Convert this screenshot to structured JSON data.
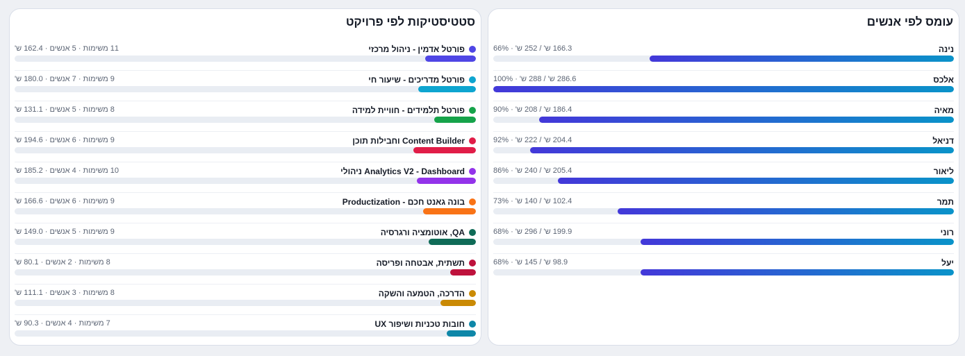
{
  "projects_panel": {
    "title": "סטטיסטיקות לפי פרויקט",
    "rows": [
      {
        "name": "פורטל אדמין - ניהול מרכזי",
        "stats": "11 משימות · 5 אנשים · 162.4 ש'",
        "color": "#4f46e5",
        "fill": 0.11
      },
      {
        "name": "פורטל מדריכים - שיעור חי",
        "stats": "9 משימות · 7 אנשים · 180.0 ש'",
        "color": "#0ea5d0",
        "fill": 0.125
      },
      {
        "name": "פורטל תלמידים - חוויית למידה",
        "stats": "8 משימות · 5 אנשים · 131.1 ש'",
        "color": "#16a34a",
        "fill": 0.09
      },
      {
        "name": "Content Builder וחבילות תוכן",
        "stats": "9 משימות · 6 אנשים · 194.6 ש'",
        "color": "#e11d48",
        "fill": 0.135
      },
      {
        "name": "Analytics V2 - Dashboard ניהולי",
        "stats": "10 משימות · 4 אנשים · 185.2 ש'",
        "color": "#9333ea",
        "fill": 0.128
      },
      {
        "name": "בונה גאנט חכם - Productization",
        "stats": "9 משימות · 6 אנשים · 166.6 ש'",
        "color": "#f97316",
        "fill": 0.115
      },
      {
        "name": "QA, אוטומציה ורגרסיה",
        "stats": "9 משימות · 5 אנשים · 149.0 ש'",
        "color": "#0f6b57",
        "fill": 0.103
      },
      {
        "name": "תשתית, אבטחה ופריסה",
        "stats": "8 משימות · 2 אנשים · 80.1 ש'",
        "color": "#be123c",
        "fill": 0.056
      },
      {
        "name": "הדרכה, הטמעה והשקה",
        "stats": "8 משימות · 3 אנשים · 111.1 ש'",
        "color": "#ca8a04",
        "fill": 0.077
      },
      {
        "name": "חובות טכניות ושיפור UX",
        "stats": "7 משימות · 4 אנשים · 90.3 ש'",
        "color": "#0e87a8",
        "fill": 0.063
      }
    ]
  },
  "people_panel": {
    "title": "עומס לפי אנשים",
    "rows": [
      {
        "name": "נינה",
        "stats": "166.3 ש' / 252 ש' · 66%",
        "fill": 0.66
      },
      {
        "name": "אלכס",
        "stats": "286.6 ש' / 288 ש' · 100%",
        "fill": 1.0
      },
      {
        "name": "מאיה",
        "stats": "186.4 ש' / 208 ש' · 90%",
        "fill": 0.9
      },
      {
        "name": "דניאל",
        "stats": "204.4 ש' / 222 ש' · 92%",
        "fill": 0.92
      },
      {
        "name": "ליאור",
        "stats": "205.4 ש' / 240 ש' · 86%",
        "fill": 0.86
      },
      {
        "name": "תמר",
        "stats": "102.4 ש' / 140 ש' · 73%",
        "fill": 0.73
      },
      {
        "name": "רוני",
        "stats": "199.9 ש' / 296 ש' · 68%",
        "fill": 0.68
      },
      {
        "name": "יעל",
        "stats": "98.9 ש' / 145 ש' · 68%",
        "fill": 0.68
      }
    ]
  }
}
